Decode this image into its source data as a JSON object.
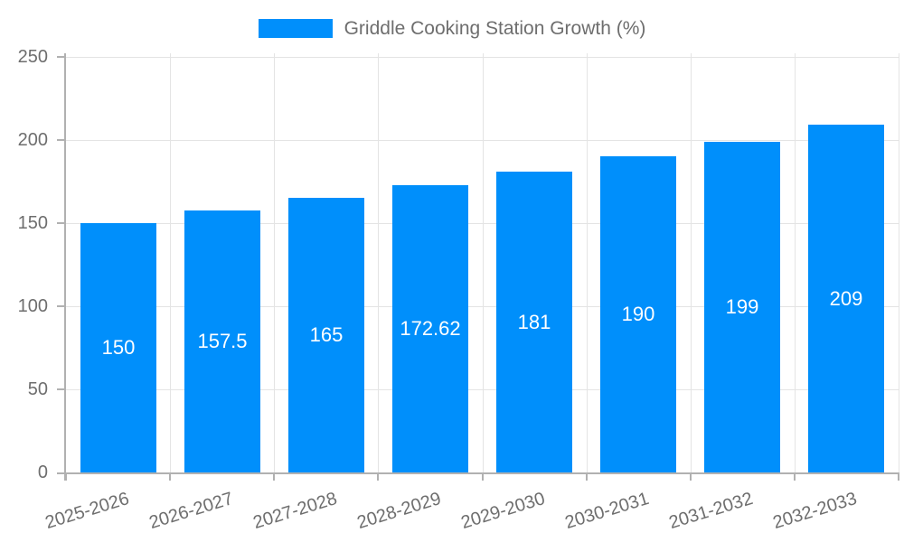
{
  "chart_data": {
    "type": "bar",
    "title": "Griddle Cooking Station Growth (%)",
    "categories": [
      "2025-2026",
      "2026-2027",
      "2027-2028",
      "2028-2029",
      "2029-2030",
      "2030-2031",
      "2031-2032",
      "2032-2033"
    ],
    "values": [
      150,
      157.5,
      165,
      172.62,
      181,
      190,
      199,
      209
    ],
    "value_labels": [
      "150",
      "157.5",
      "165",
      "172.62",
      "181",
      "190",
      "199",
      "209"
    ],
    "xlabel": "",
    "ylabel": "",
    "ylim": [
      0,
      250
    ],
    "yticks": [
      0,
      50,
      100,
      150,
      200,
      250
    ],
    "ytick_labels": [
      "0",
      "50",
      "100",
      "150",
      "200",
      "250"
    ],
    "grid": "both",
    "legend_position": "top",
    "x_label_rotation_deg": -17,
    "colors": {
      "bar": "#008FFB",
      "data_label": "#FFFFFF",
      "axis_text": "#6E6E6E",
      "grid_line": "#E4E4E4",
      "axis_line": "#B1B1B1",
      "background": "#FFFFFF"
    }
  }
}
